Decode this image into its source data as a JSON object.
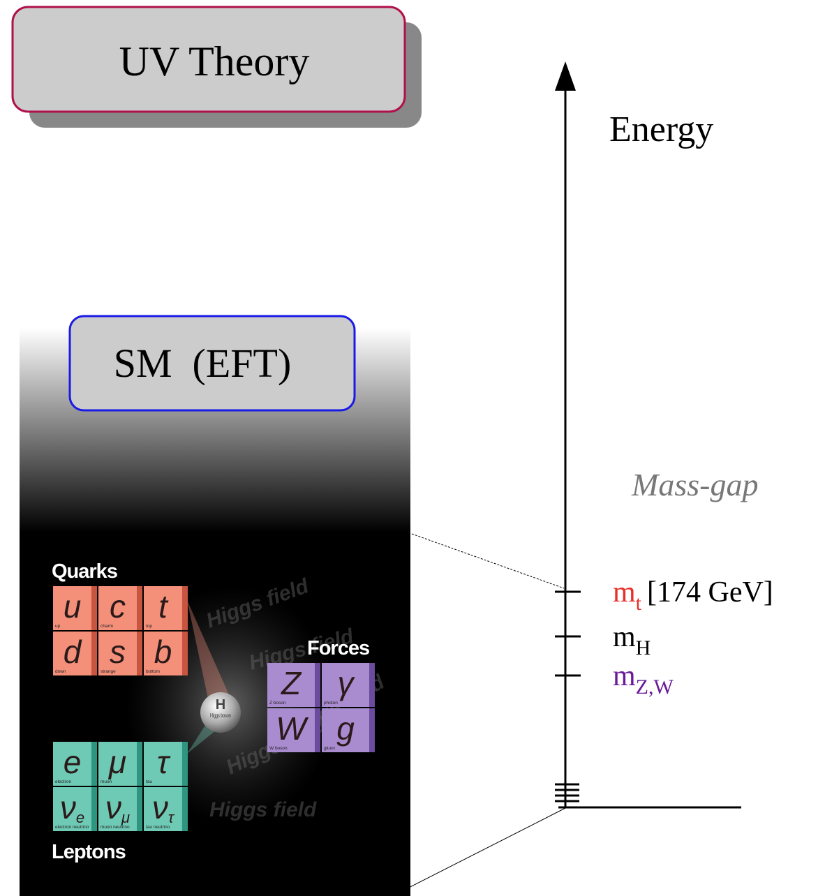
{
  "uv_theory": "UV Theory",
  "sm_eft": "SM  (EFT)",
  "axis": {
    "label": "Energy",
    "mass_gap": "Mass-gap",
    "scales": [
      {
        "symbol": "m",
        "sub": "t",
        "text": "[174 GeV]"
      },
      {
        "symbol": "m",
        "sub": "H"
      },
      {
        "symbol": "m",
        "sub": "Z,W"
      }
    ]
  },
  "particles": {
    "quarks": {
      "title": "Quarks",
      "items": [
        {
          "symbol": "u",
          "name": "up"
        },
        {
          "symbol": "c",
          "name": "charm"
        },
        {
          "symbol": "t",
          "name": "top"
        },
        {
          "symbol": "d",
          "name": "down"
        },
        {
          "symbol": "s",
          "name": "strange"
        },
        {
          "symbol": "b",
          "name": "bottom"
        }
      ]
    },
    "forces": {
      "title": "Forces",
      "items": [
        {
          "symbol": "Z",
          "name": "Z boson"
        },
        {
          "symbol": "γ",
          "name": "photon"
        },
        {
          "symbol": "W",
          "name": "W boson"
        },
        {
          "symbol": "g",
          "name": "gluon"
        }
      ]
    },
    "leptons": {
      "title": "Leptons",
      "items": [
        {
          "symbol": "e",
          "name": "electron"
        },
        {
          "symbol": "μ",
          "name": "muon"
        },
        {
          "symbol": "τ",
          "name": "tau"
        },
        {
          "symbol": "ν",
          "sub": "e",
          "name": "electron neutrino"
        },
        {
          "symbol": "ν",
          "sub": "μ",
          "name": "muon neutrino"
        },
        {
          "symbol": "ν",
          "sub": "τ",
          "name": "tau neutrino"
        }
      ]
    },
    "higgs": {
      "symbol": "H",
      "name": "Higgs boson"
    },
    "field": "Higgs field"
  }
}
